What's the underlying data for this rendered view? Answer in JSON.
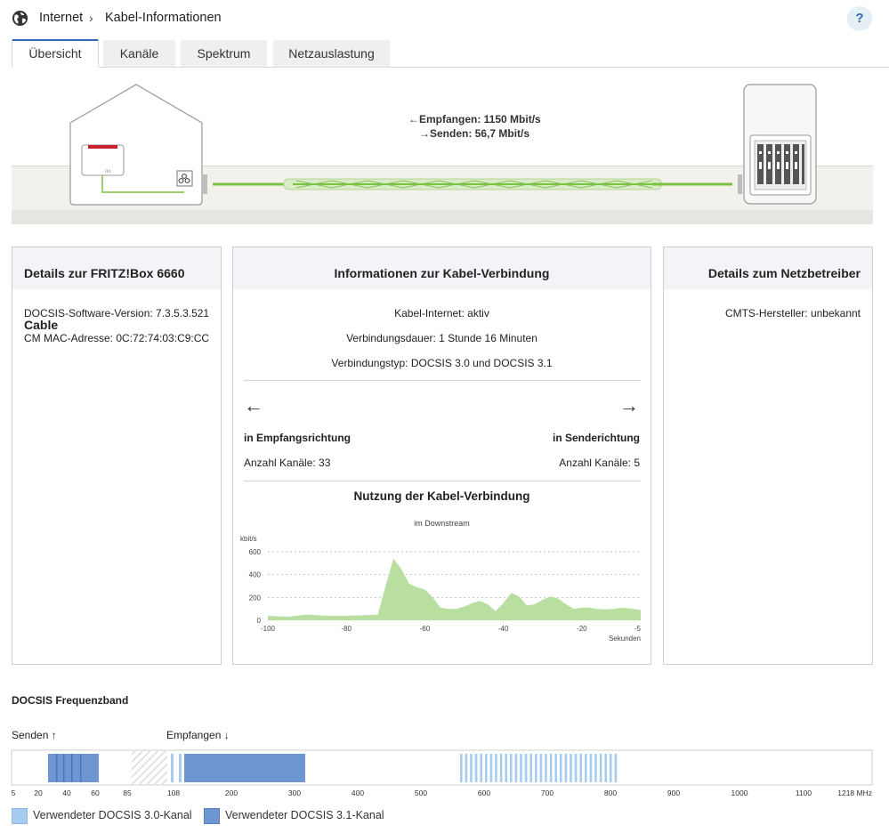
{
  "header": {
    "breadcrumb_root": "Internet",
    "breadcrumb_sep": "›",
    "breadcrumb_page": "Kabel-Informationen",
    "help_label": "?"
  },
  "tabs": [
    {
      "label": "Übersicht",
      "active": true
    },
    {
      "label": "Kanäle",
      "active": false
    },
    {
      "label": "Spektrum",
      "active": false
    },
    {
      "label": "Netzauslastung",
      "active": false
    }
  ],
  "connection": {
    "receive": "Empfangen: 1150 Mbit/s",
    "send": "Senden: 56,7 Mbit/s"
  },
  "panel_box": {
    "title": "Details zur FRITZ!Box 6660 Cable",
    "docsis_version": "DOCSIS-Software-Version: 7.3.5.3.521",
    "mac": "CM MAC-Adresse: 0C:72:74:03:C9:CC"
  },
  "panel_cable": {
    "title": "Informationen zur Kabel-Verbindung",
    "status": "Kabel-Internet: aktiv",
    "duration": "Verbindungsdauer: 1 Stunde 16 Minuten",
    "type": "Verbindungstyp: DOCSIS 3.0 und DOCSIS 3.1",
    "down_title": "in Empfangsrichtung",
    "down_channels": "Anzahl Kanäle: 33",
    "up_title": "in Senderichtung",
    "up_channels": "Anzahl Kanäle: 5",
    "usage_title": "Nutzung der Kabel-Verbindung",
    "usage_subtitle": "im Downstream"
  },
  "panel_operator": {
    "title": "Details zum Netzbetreiber",
    "cmts": "CMTS-Hersteller: unbekannt"
  },
  "chart_data": {
    "type": "area",
    "title": "Nutzung der Kabel-Verbindung",
    "subtitle": "im Downstream",
    "ylabel": "kbit/s",
    "xlabel": "Sekunden",
    "ylim": [
      0,
      600
    ],
    "xlim": [
      -100,
      -5
    ],
    "yticks": [
      0,
      200,
      400,
      600
    ],
    "xticks": [
      -100,
      -80,
      -60,
      -40,
      -20,
      -5
    ],
    "grid": true,
    "color": "#b8dfa0",
    "x": [
      -100,
      -95,
      -90,
      -85,
      -80,
      -75,
      -72,
      -70,
      -68,
      -66,
      -64,
      -62,
      -60,
      -58,
      -56,
      -54,
      -52,
      -50,
      -48,
      -46,
      -44,
      -42,
      -40,
      -38,
      -36,
      -34,
      -32,
      -30,
      -28,
      -26,
      -24,
      -22,
      -20,
      -18,
      -16,
      -14,
      -12,
      -10,
      -8,
      -5
    ],
    "values": [
      40,
      30,
      50,
      40,
      40,
      45,
      50,
      300,
      540,
      450,
      320,
      290,
      270,
      200,
      110,
      100,
      100,
      120,
      150,
      170,
      140,
      80,
      150,
      240,
      210,
      130,
      140,
      180,
      210,
      190,
      140,
      100,
      110,
      110,
      100,
      95,
      100,
      110,
      105,
      90
    ]
  },
  "freq_band": {
    "title": "DOCSIS Frequenzband",
    "send_label": "Senden",
    "receive_label": "Empfangen",
    "unit_label": "1218 MHz",
    "ticks": [
      "5",
      "20",
      "40",
      "60",
      "85",
      "108",
      "200",
      "300",
      "400",
      "500",
      "600",
      "700",
      "800",
      "900",
      "1000",
      "1100"
    ],
    "legend_30": "Verwendeter DOCSIS 3.0-Kanal",
    "legend_31": "Verwendeter DOCSIS 3.1-Kanal",
    "color_30": "#a6cdf0",
    "color_31": "#6e96d2"
  }
}
